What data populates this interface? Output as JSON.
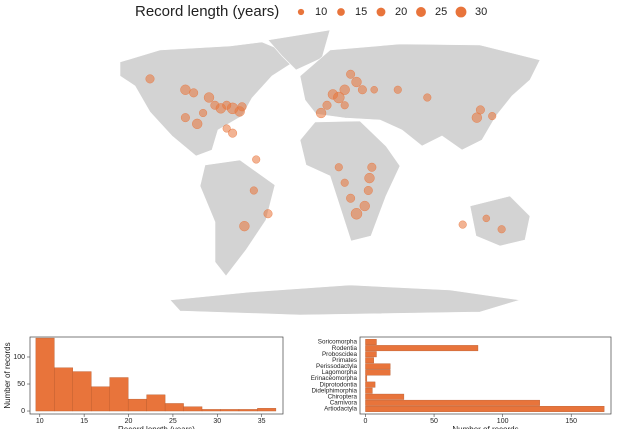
{
  "chart_data": [
    {
      "type": "map",
      "legend_title": "Record length (years)",
      "legend_sizes": [
        10,
        15,
        20,
        25,
        30
      ],
      "color": "#e8743b",
      "x": [
        -150,
        -120,
        -113,
        -105,
        -100,
        -95,
        -90,
        -85,
        -80,
        -74,
        -72,
        -120,
        -110,
        -85,
        -80,
        5,
        10,
        15,
        25,
        20,
        30,
        0,
        -5,
        15,
        40,
        60,
        85,
        127,
        130,
        140,
        36,
        35,
        32,
        25,
        20,
        15,
        10,
        38,
        -50,
        -70,
        -62,
        148,
        115,
        135,
        -60
      ],
      "y": [
        62,
        55,
        53,
        40,
        50,
        45,
        43,
        45,
        43,
        41,
        44,
        37,
        33,
        30,
        27,
        52,
        50,
        55,
        60,
        65,
        55,
        45,
        40,
        45,
        55,
        55,
        50,
        37,
        42,
        38,
        -2,
        -10,
        -20,
        -25,
        -15,
        -5,
        5,
        5,
        -25,
        -33,
        -10,
        -35,
        -32,
        -28,
        10
      ],
      "values": [
        15,
        20,
        15,
        12,
        20,
        15,
        20,
        15,
        25,
        20,
        15,
        15,
        20,
        12,
        15,
        20,
        25,
        20,
        20,
        15,
        15,
        15,
        20,
        12,
        10,
        12,
        12,
        20,
        15,
        12,
        20,
        15,
        20,
        25,
        15,
        12,
        12,
        15,
        15,
        20,
        12,
        12,
        12,
        10,
        12
      ]
    },
    {
      "type": "histogram",
      "xlabel": "Record length (years)",
      "ylabel": "Number of records",
      "color": "#e8743b",
      "bins": [
        9.56,
        11.64,
        13.72,
        15.8,
        17.88,
        19.96,
        22.04,
        24.12,
        26.2,
        28.28,
        30.36,
        32.44,
        34.52,
        36.6
      ],
      "values": [
        135,
        80,
        73,
        45,
        62,
        22,
        30,
        14,
        8,
        3,
        3,
        3,
        5
      ],
      "xlim": [
        8.9,
        37.4
      ],
      "xticks": [
        10,
        15,
        20,
        25,
        30,
        35
      ],
      "ylim": [
        -5.5,
        137
      ],
      "yticks": [
        0,
        50,
        100
      ]
    },
    {
      "type": "hbar",
      "xlabel": "Number of records",
      "color": "#e8743b",
      "categories": [
        "Artiodactyla",
        "Carnivora",
        "Chiroptera",
        "Didelphimorphia",
        "Diprotodontia",
        "Erinaceomorpha",
        "Lagomorpha",
        "Perissodactyla",
        "Primates",
        "Proboscidea",
        "Rodentia",
        "Soricomorpha"
      ],
      "values": [
        174,
        127,
        28,
        5,
        7,
        1,
        18,
        18,
        6,
        8,
        82,
        8
      ],
      "xlim": [
        -4,
        179
      ],
      "xticks": [
        0,
        50,
        100,
        150
      ]
    }
  ]
}
